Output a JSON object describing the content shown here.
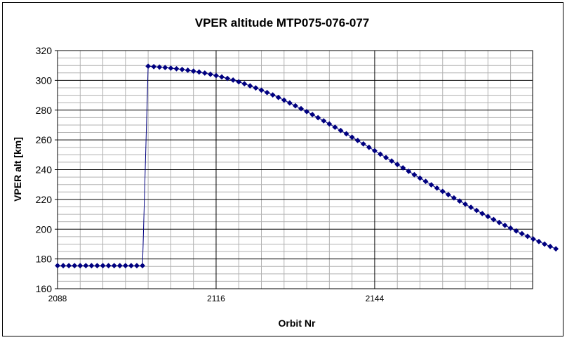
{
  "chart_data": {
    "type": "line",
    "title": "VPER altitude MTP075-076-077",
    "xlabel": "Orbit  Nr",
    "ylabel": "VPER alt [km]",
    "xlim": [
      2088,
      2172
    ],
    "ylim": [
      160,
      320
    ],
    "yticks": [
      160,
      180,
      200,
      220,
      240,
      260,
      280,
      300,
      320
    ],
    "xtick_labels": [
      2088,
      2116,
      2144
    ],
    "grid": true,
    "legend": "none",
    "line_color": "#000080",
    "series": [
      {
        "points": [
          [
            2088,
            175.5
          ],
          [
            2089,
            175.5
          ],
          [
            2090,
            175.5
          ],
          [
            2091,
            175.5
          ],
          [
            2092,
            175.5
          ],
          [
            2093,
            175.5
          ],
          [
            2094,
            175.5
          ],
          [
            2095,
            175.5
          ],
          [
            2096,
            175.5
          ],
          [
            2097,
            175.5
          ],
          [
            2098,
            175.5
          ],
          [
            2099,
            175.5
          ],
          [
            2100,
            175.5
          ],
          [
            2101,
            175.5
          ],
          [
            2102,
            175.5
          ],
          [
            2103,
            175.5
          ],
          [
            2104,
            309.5
          ],
          [
            2105,
            309.2
          ],
          [
            2106,
            308.9
          ],
          [
            2107,
            308.6
          ],
          [
            2108,
            308.2
          ],
          [
            2109,
            307.8
          ],
          [
            2110,
            307.3
          ],
          [
            2111,
            306.8
          ],
          [
            2112,
            306.2
          ],
          [
            2113,
            305.6
          ],
          [
            2114,
            304.9
          ],
          [
            2115,
            304.1
          ],
          [
            2116,
            303.2
          ],
          [
            2117,
            302.3
          ],
          [
            2118,
            301.3
          ],
          [
            2119,
            300.2
          ],
          [
            2120,
            299.0
          ],
          [
            2121,
            297.7
          ],
          [
            2122,
            296.3
          ],
          [
            2123,
            294.9
          ],
          [
            2124,
            293.4
          ],
          [
            2125,
            291.8
          ],
          [
            2126,
            290.2
          ],
          [
            2127,
            288.5
          ],
          [
            2128,
            286.7
          ],
          [
            2129,
            284.8
          ],
          [
            2130,
            282.9
          ],
          [
            2131,
            281.0
          ],
          [
            2132,
            279.0
          ],
          [
            2133,
            277.0
          ],
          [
            2134,
            274.9
          ],
          [
            2135,
            272.8
          ],
          [
            2136,
            270.7
          ],
          [
            2137,
            268.5
          ],
          [
            2138,
            266.3
          ],
          [
            2139,
            264.1
          ],
          [
            2140,
            261.8
          ],
          [
            2141,
            259.6
          ],
          [
            2142,
            257.3
          ],
          [
            2143,
            255.0
          ],
          [
            2144,
            252.7
          ],
          [
            2145,
            250.4
          ],
          [
            2146,
            248.1
          ],
          [
            2147,
            245.8
          ],
          [
            2148,
            243.5
          ],
          [
            2149,
            241.2
          ],
          [
            2150,
            238.9
          ],
          [
            2151,
            236.6
          ],
          [
            2152,
            234.3
          ],
          [
            2153,
            232.1
          ],
          [
            2154,
            229.8
          ],
          [
            2155,
            227.6
          ],
          [
            2156,
            225.4
          ],
          [
            2157,
            223.2
          ],
          [
            2158,
            221.0
          ],
          [
            2159,
            218.9
          ],
          [
            2160,
            216.8
          ],
          [
            2161,
            214.7
          ],
          [
            2162,
            212.6
          ],
          [
            2163,
            210.5
          ],
          [
            2164,
            208.5
          ],
          [
            2165,
            206.5
          ],
          [
            2166,
            204.5
          ],
          [
            2167,
            202.6
          ],
          [
            2168,
            200.7
          ],
          [
            2169,
            198.8
          ],
          [
            2170,
            197.0
          ],
          [
            2171,
            195.2
          ],
          [
            2172,
            193.4
          ],
          [
            2173,
            191.7
          ],
          [
            2174,
            190.0
          ],
          [
            2175,
            188.4
          ],
          [
            2176,
            186.8
          ]
        ]
      }
    ]
  }
}
